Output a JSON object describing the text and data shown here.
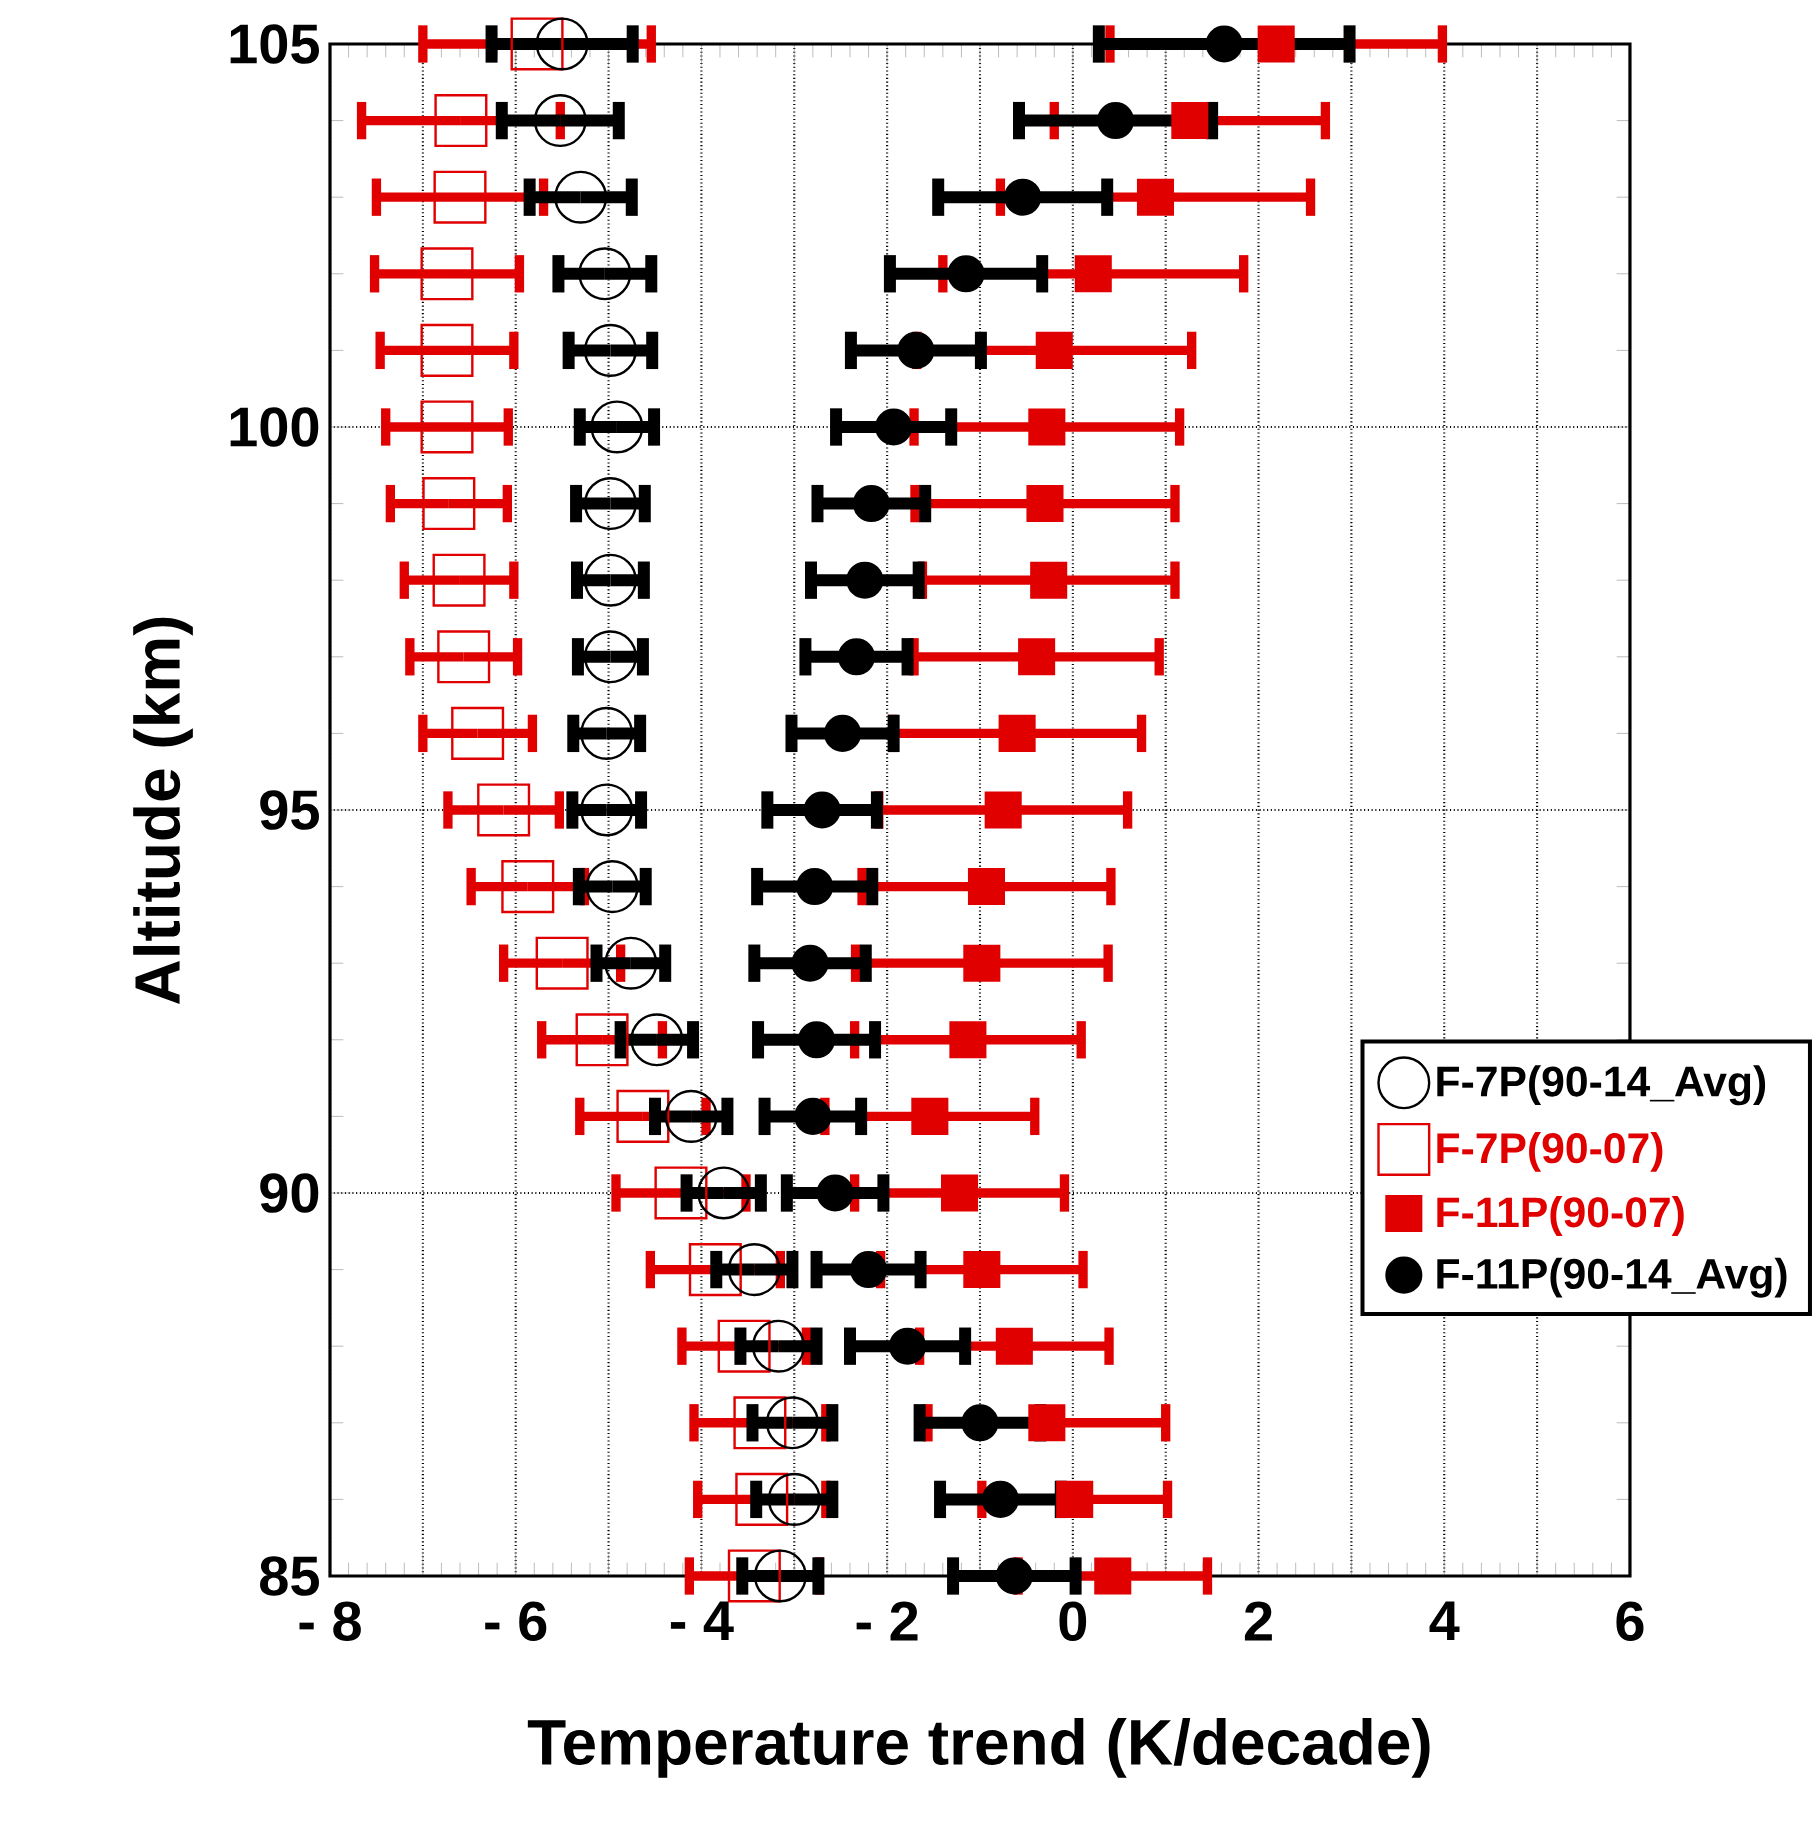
{
  "chart_data": {
    "type": "scatter",
    "xlabel": "Temperature trend (K/decade)",
    "ylabel": "Altitude (km)",
    "xlim": [
      -8,
      6
    ],
    "ylim": [
      85,
      105
    ],
    "xticks": [
      {
        "value": -8,
        "label": "- 8"
      },
      {
        "value": -7,
        "label": null
      },
      {
        "value": -6,
        "label": "- 6"
      },
      {
        "value": -5,
        "label": null
      },
      {
        "value": -4,
        "label": "- 4"
      },
      {
        "value": -3,
        "label": null
      },
      {
        "value": -2,
        "label": "- 2"
      },
      {
        "value": -1,
        "label": null
      },
      0,
      {
        "value": 1,
        "label": null
      },
      2,
      {
        "value": 3,
        "label": null
      },
      4,
      {
        "value": 5,
        "label": null
      },
      6
    ],
    "yticks": [
      85,
      90,
      95,
      100,
      105
    ],
    "grid": true,
    "legend": "right",
    "series": [
      {
        "name": "F-7P(90-14_Avg)",
        "color": "#000000",
        "marker": "circle",
        "x": [
          -5.5,
          -5.52,
          -5.3,
          -5.04,
          -4.98,
          -4.91,
          -4.98,
          -4.98,
          -4.98,
          -5.02,
          -5.02,
          -4.96,
          -4.76,
          -4.48,
          -4.11,
          -3.76,
          -3.43,
          -3.17,
          -3.02,
          -3.0,
          -3.15
        ],
        "values": [
          105,
          104,
          103,
          102,
          101,
          100,
          99,
          98,
          97,
          96,
          95,
          94,
          93,
          92,
          91,
          90,
          89,
          88,
          87,
          86,
          85
        ],
        "xerrors": [
          0.76,
          0.63,
          0.55,
          0.5,
          0.45,
          0.4,
          0.37,
          0.36,
          0.35,
          0.36,
          0.37,
          0.36,
          0.37,
          0.39,
          0.39,
          0.4,
          0.41,
          0.41,
          0.43,
          0.41,
          0.41
        ]
      },
      {
        "name": "F-7P(90-07)",
        "color": "#e00000",
        "marker": "square",
        "x": [
          -5.77,
          -6.59,
          -6.6,
          -6.74,
          -6.74,
          -6.74,
          -6.72,
          -6.61,
          -6.56,
          -6.41,
          -6.13,
          -5.87,
          -5.5,
          -5.07,
          -4.63,
          -4.22,
          -3.85,
          -3.54,
          -3.37,
          -3.35,
          -3.43
        ],
        "values": [
          105,
          104,
          103,
          102,
          101,
          100,
          99,
          98,
          97,
          96,
          95,
          94,
          93,
          92,
          91,
          90,
          89,
          88,
          87,
          86,
          85
        ],
        "xerrors": [
          1.23,
          1.07,
          0.9,
          0.78,
          0.72,
          0.66,
          0.63,
          0.59,
          0.58,
          0.59,
          0.6,
          0.61,
          0.63,
          0.65,
          0.68,
          0.7,
          0.7,
          0.67,
          0.71,
          0.69,
          0.7
        ]
      },
      {
        "name": "F-11P(90-07)",
        "color": "#e00000",
        "marker": "square",
        "x": [
          2.19,
          1.26,
          0.89,
          0.22,
          -0.2,
          -0.28,
          -0.3,
          -0.26,
          -0.39,
          -0.6,
          -0.75,
          -0.93,
          -0.98,
          -1.13,
          -1.54,
          -1.22,
          -0.98,
          -0.63,
          -0.28,
          0.02,
          0.43
        ],
        "values": [
          105,
          104,
          103,
          102,
          101,
          100,
          99,
          98,
          97,
          96,
          95,
          94,
          93,
          92,
          91,
          90,
          89,
          88,
          87,
          86,
          85
        ],
        "xerrors": [
          1.79,
          1.46,
          1.67,
          1.62,
          1.48,
          1.43,
          1.4,
          1.36,
          1.32,
          1.34,
          1.34,
          1.34,
          1.36,
          1.22,
          1.13,
          1.13,
          1.09,
          1.02,
          1.28,
          1.0,
          1.02
        ]
      },
      {
        "name": "F-11P(90-14_Avg)",
        "color": "#000000",
        "marker": "circle",
        "x": [
          1.63,
          0.46,
          -0.54,
          -1.15,
          -1.69,
          -1.93,
          -2.17,
          -2.24,
          -2.33,
          -2.48,
          -2.7,
          -2.78,
          -2.83,
          -2.76,
          -2.8,
          -2.56,
          -2.2,
          -1.78,
          -1.0,
          -0.78,
          -0.63
        ],
        "values": [
          105,
          104,
          103,
          102,
          101,
          100,
          99,
          98,
          97,
          96,
          95,
          94,
          93,
          92,
          91,
          90,
          89,
          88,
          87,
          86,
          85
        ],
        "xerrors": [
          1.35,
          1.04,
          0.91,
          0.82,
          0.7,
          0.62,
          0.58,
          0.58,
          0.55,
          0.55,
          0.59,
          0.62,
          0.6,
          0.63,
          0.52,
          0.52,
          0.56,
          0.62,
          0.65,
          0.65,
          0.66
        ]
      }
    ]
  }
}
